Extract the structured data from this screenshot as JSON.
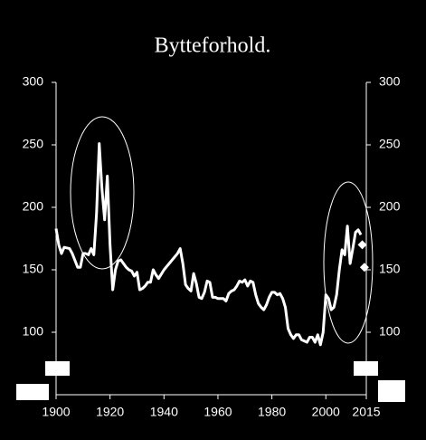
{
  "chart_data": {
    "type": "line",
    "title": "Bytteforhold.",
    "xlim": [
      1900,
      2015
    ],
    "xticks": [
      1900,
      1920,
      1940,
      1960,
      1980,
      2000,
      2015
    ],
    "ylim": [
      50,
      300
    ],
    "yticks": [
      100,
      150,
      200,
      250,
      300
    ],
    "y2lim": [
      50,
      300
    ],
    "y2ticks": [
      100,
      150,
      200,
      250,
      300
    ],
    "series": [
      {
        "color": "#ffffff",
        "marker": "none",
        "x": [
          1900,
          1901,
          1902,
          1903,
          1905,
          1906,
          1908,
          1909,
          1910,
          1911,
          1912,
          1913,
          1914,
          1915,
          1916,
          1917,
          1918,
          1919,
          1920,
          1921,
          1922,
          1923,
          1924,
          1925,
          1926,
          1927,
          1928,
          1929,
          1930,
          1931,
          1932,
          1933,
          1934,
          1935,
          1936,
          1937,
          1938,
          1940,
          1945,
          1946,
          1947,
          1948,
          1949,
          1950,
          1951,
          1952,
          1953,
          1954,
          1955,
          1956,
          1957,
          1958,
          1959,
          1960,
          1962,
          1963,
          1964,
          1965,
          1966,
          1967,
          1968,
          1969,
          1970,
          1971,
          1972,
          1973,
          1974,
          1975,
          1976,
          1977,
          1978,
          1979,
          1980,
          1981,
          1982,
          1983,
          1984,
          1985,
          1986,
          1987,
          1988,
          1989,
          1990,
          1991,
          1992,
          1993,
          1994,
          1995,
          1996,
          1997,
          1998,
          1999,
          2000,
          2001,
          2002,
          2003,
          2004,
          2005,
          2006,
          2007,
          2008,
          2009,
          2010,
          2011,
          2012,
          2013
        ],
        "values": [
          183,
          170,
          163,
          168,
          167,
          163,
          152,
          152,
          163,
          163,
          162,
          167,
          162,
          195,
          251,
          215,
          190,
          225,
          170,
          134,
          150,
          157,
          158,
          155,
          152,
          150,
          149,
          145,
          148,
          134,
          135,
          137,
          140,
          140,
          150,
          146,
          143,
          150,
          163,
          167,
          155,
          138,
          135,
          133,
          147,
          139,
          128,
          127,
          132,
          141,
          140,
          128,
          128,
          127,
          127,
          125,
          131,
          133,
          134,
          137,
          141,
          140,
          142,
          137,
          141,
          140,
          130,
          123,
          120,
          118,
          122,
          128,
          132,
          132,
          130,
          131,
          127,
          120,
          103,
          98,
          95,
          98,
          98,
          94,
          93,
          92,
          96,
          96,
          92,
          98,
          90,
          100,
          130,
          127,
          118,
          120,
          130,
          150,
          166,
          162,
          185,
          155,
          167,
          180,
          182,
          178
        ]
      },
      {
        "color": "#ffffff",
        "marker": "diamond",
        "x": [
          2013.5,
          2014.3
        ],
        "values": [
          170,
          152
        ]
      }
    ]
  }
}
